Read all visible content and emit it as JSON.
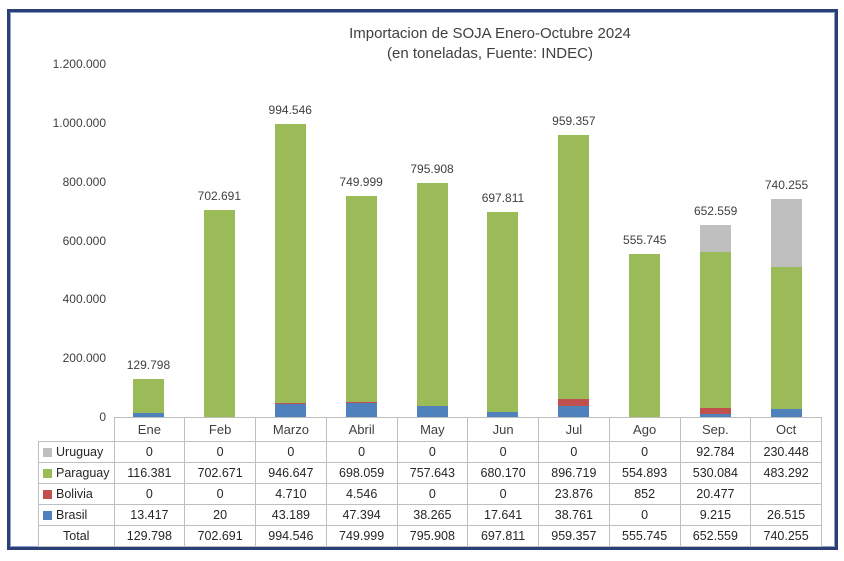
{
  "chart": {
    "title_line1": "Importacion de SOJA Enero-Octubre 2024",
    "title_line2": "(en toneladas, Fuente: INDEC)"
  },
  "chart_data": {
    "type": "bar",
    "stacked": true,
    "title": "Importacion de SOJA Enero-Octubre 2024",
    "subtitle": "(en toneladas, Fuente: INDEC)",
    "xlabel": "",
    "ylabel": "",
    "ymax": 1200000,
    "ylim": [
      0,
      1200000
    ],
    "grid": false,
    "legend_position": "table-left",
    "categories": [
      "Ene",
      "Feb",
      "Marzo",
      "Abril",
      "May",
      "Jun",
      "Jul",
      "Ago",
      "Sep.",
      "Oct"
    ],
    "series": [
      {
        "name": "Brasil",
        "color": "#4F81BD",
        "values": [
          13417,
          20,
          43189,
          47394,
          38265,
          17641,
          38761,
          0,
          9215,
          26515
        ]
      },
      {
        "name": "Bolivia",
        "color": "#C0504D",
        "values": [
          0,
          0,
          4710,
          4546,
          0,
          0,
          23876,
          852,
          20477,
          0
        ]
      },
      {
        "name": "Paraguay",
        "color": "#9BBB59",
        "values": [
          116381,
          702671,
          946647,
          698059,
          757643,
          680170,
          896719,
          554893,
          530084,
          483292
        ]
      },
      {
        "name": "Uruguay",
        "color": "#BFBFBF",
        "values": [
          0,
          0,
          0,
          0,
          0,
          0,
          0,
          0,
          92784,
          230448
        ]
      }
    ],
    "totals": [
      129798,
      702691,
      994546,
      749999,
      795908,
      697811,
      959357,
      555745,
      652559,
      740255
    ],
    "total_labels": [
      "129.798",
      "702.691",
      "994.546",
      "749.999",
      "795.908",
      "697.811",
      "959.357",
      "555.745",
      "652.559",
      "740.255"
    ],
    "yticks": [
      "1.200.000",
      "1.000.000",
      "800.000",
      "600.000",
      "400.000",
      "200.000",
      "0"
    ]
  },
  "table": {
    "rows": [
      {
        "label": "Uruguay",
        "swatch": "#BFBFBF",
        "cells": [
          "0",
          "0",
          "0",
          "0",
          "0",
          "0",
          "0",
          "0",
          "92.784",
          "230.448"
        ]
      },
      {
        "label": "Paraguay",
        "swatch": "#9BBB59",
        "cells": [
          "116.381",
          "702.671",
          "946.647",
          "698.059",
          "757.643",
          "680.170",
          "896.719",
          "554.893",
          "530.084",
          "483.292"
        ]
      },
      {
        "label": "Bolivia",
        "swatch": "#C0504D",
        "cells": [
          "0",
          "0",
          "4.710",
          "4.546",
          "0",
          "0",
          "23.876",
          "852",
          "20.477",
          ""
        ]
      },
      {
        "label": "Brasil",
        "swatch": "#4F81BD",
        "cells": [
          "13.417",
          "20",
          "43.189",
          "47.394",
          "38.265",
          "17.641",
          "38.761",
          "0",
          "9.215",
          "26.515"
        ]
      },
      {
        "label": "Total",
        "swatch": null,
        "cells": [
          "129.798",
          "702.691",
          "994.546",
          "749.999",
          "795.908",
          "697.811",
          "959.357",
          "555.745",
          "652.559",
          "740.255"
        ]
      }
    ]
  },
  "colors": {
    "frame_border": "#2b3f77",
    "table_border": "#bfbfbf",
    "text": "#404040"
  }
}
